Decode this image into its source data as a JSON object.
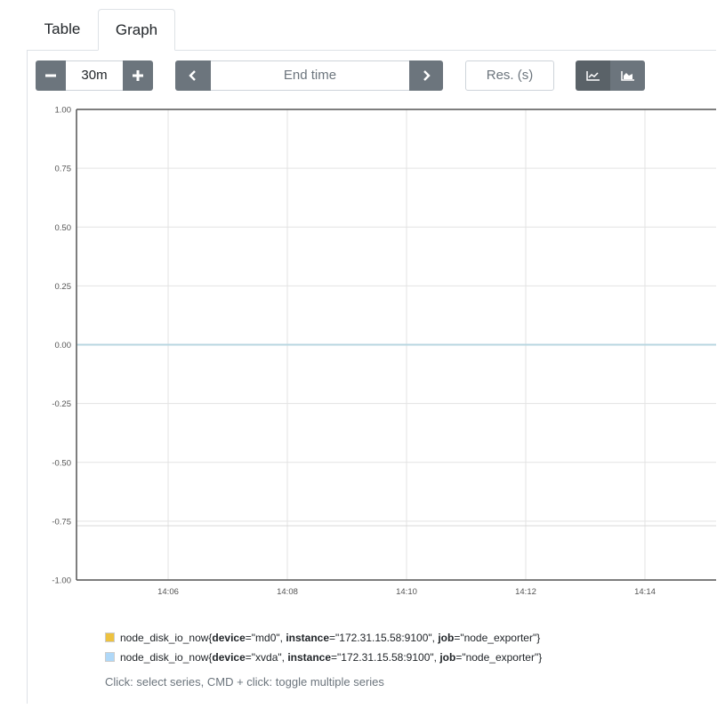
{
  "tabs": [
    {
      "label": "Table"
    },
    {
      "label": "Graph"
    }
  ],
  "controls": {
    "range_value": "30m",
    "end_time_placeholder": "End time",
    "resolution_placeholder": "Res. (s)"
  },
  "icons": {
    "minus": "minus-icon",
    "plus": "plus-icon",
    "prev": "chevron-left-icon",
    "next": "chevron-right-icon",
    "line_mode": "line-chart-icon",
    "stacked_mode": "area-chart-icon"
  },
  "chart_data": {
    "type": "line",
    "x_ticks": [
      "14:06",
      "14:08",
      "14:10",
      "14:12",
      "14:14"
    ],
    "y_ticks": [
      "1.00",
      "0.75",
      "0.50",
      "0.25",
      "0.00",
      "-0.25",
      "-0.50",
      "-0.75",
      "-1.00"
    ],
    "ylim": [
      -1,
      1
    ],
    "grid": true,
    "series": [
      {
        "name": "node_disk_io_now{device=\"md0\", instance=\"172.31.15.58:9100\", job=\"node_exporter\"}",
        "color": "#edc240",
        "value": 0
      },
      {
        "name": "node_disk_io_now{device=\"xvda\", instance=\"172.31.15.58:9100\", job=\"node_exporter\"}",
        "color": "#afd8f8",
        "value": 0
      }
    ]
  },
  "legend": [
    {
      "metric": "node_disk_io_now{",
      "k1": "device",
      "v1": "=\"md0\", ",
      "k2": "instance",
      "v2": "=\"172.31.15.58:9100\", ",
      "k3": "job",
      "v3": "=\"node_exporter\"}",
      "color": "#edc240"
    },
    {
      "metric": "node_disk_io_now{",
      "k1": "device",
      "v1": "=\"xvda\", ",
      "k2": "instance",
      "v2": "=\"172.31.15.58:9100\", ",
      "k3": "job",
      "v3": "=\"node_exporter\"}",
      "color": "#afd8f8"
    }
  ],
  "hint": "Click: select series, CMD + click: toggle multiple series"
}
